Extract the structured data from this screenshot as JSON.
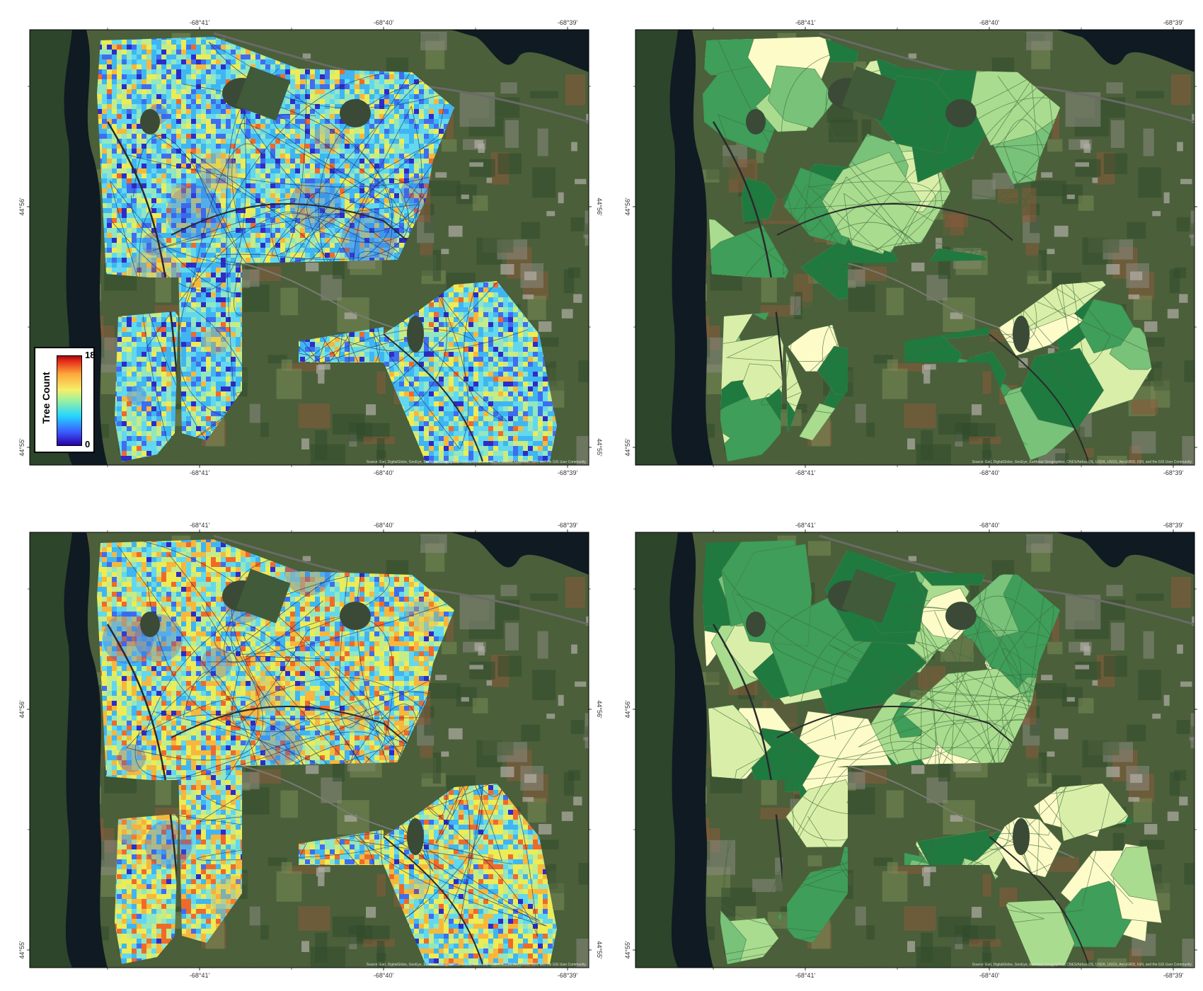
{
  "legend": {
    "title": "Tree Count",
    "max_label": "18",
    "min_label": "0",
    "ramp": [
      "#2b00a8",
      "#3a5cff",
      "#26d6ff",
      "#9bf0a0",
      "#f4f06a",
      "#ffa73a",
      "#e3261a",
      "#9b0e0e"
    ]
  },
  "axes": {
    "top_ticks": [
      "-68°41'",
      "-68°40'",
      "-68°39'"
    ],
    "bottom_ticks": [
      "-68°41'",
      "-68°40'",
      "-68°39'"
    ],
    "side_ticks": [
      "44°56'",
      "44°55'"
    ]
  },
  "attribution": "Source: Esri, DigitalGlobe, GeoEye, Earthstar Geographics, CNES/Airbus DS, USDA, USGS, AeroGRID, IGN, and the GIS User Community",
  "panels": [
    {
      "id": "top-left",
      "kind": "pixel",
      "palette": [
        "#2e2cc8",
        "#3f6df0",
        "#3fb6f2",
        "#62d8ee",
        "#92e6c0",
        "#c5ec86",
        "#ecec56",
        "#f7b73c",
        "#ef6a2a"
      ],
      "weights": [
        0.05,
        0.1,
        0.22,
        0.2,
        0.15,
        0.12,
        0.09,
        0.05,
        0.02
      ]
    },
    {
      "id": "top-right",
      "kind": "stand",
      "palette": [
        "#fdfbc8",
        "#d9efa9",
        "#a9dc8f",
        "#78c27a",
        "#3e9e5a",
        "#1f7a40"
      ]
    },
    {
      "id": "bottom-left",
      "kind": "pixel",
      "palette": [
        "#2e2cc8",
        "#3f6df0",
        "#3fb6f2",
        "#62d8ee",
        "#92e6c0",
        "#c5ec86",
        "#ecec56",
        "#f7b73c",
        "#ef6a2a"
      ],
      "weights": [
        0.02,
        0.04,
        0.12,
        0.14,
        0.12,
        0.14,
        0.2,
        0.14,
        0.08
      ]
    },
    {
      "id": "bottom-right",
      "kind": "stand",
      "palette": [
        "#fdfbc8",
        "#d9efa9",
        "#a9dc8f",
        "#78c27a",
        "#3e9e5a",
        "#1f7a40"
      ]
    }
  ],
  "imagery_colors": {
    "land": "#4a5f3a",
    "forest": "#314a2c",
    "water": "#101a22",
    "field": "#7a8a55",
    "urban": "#8a8a80",
    "autumn": "#8a5a3a"
  }
}
